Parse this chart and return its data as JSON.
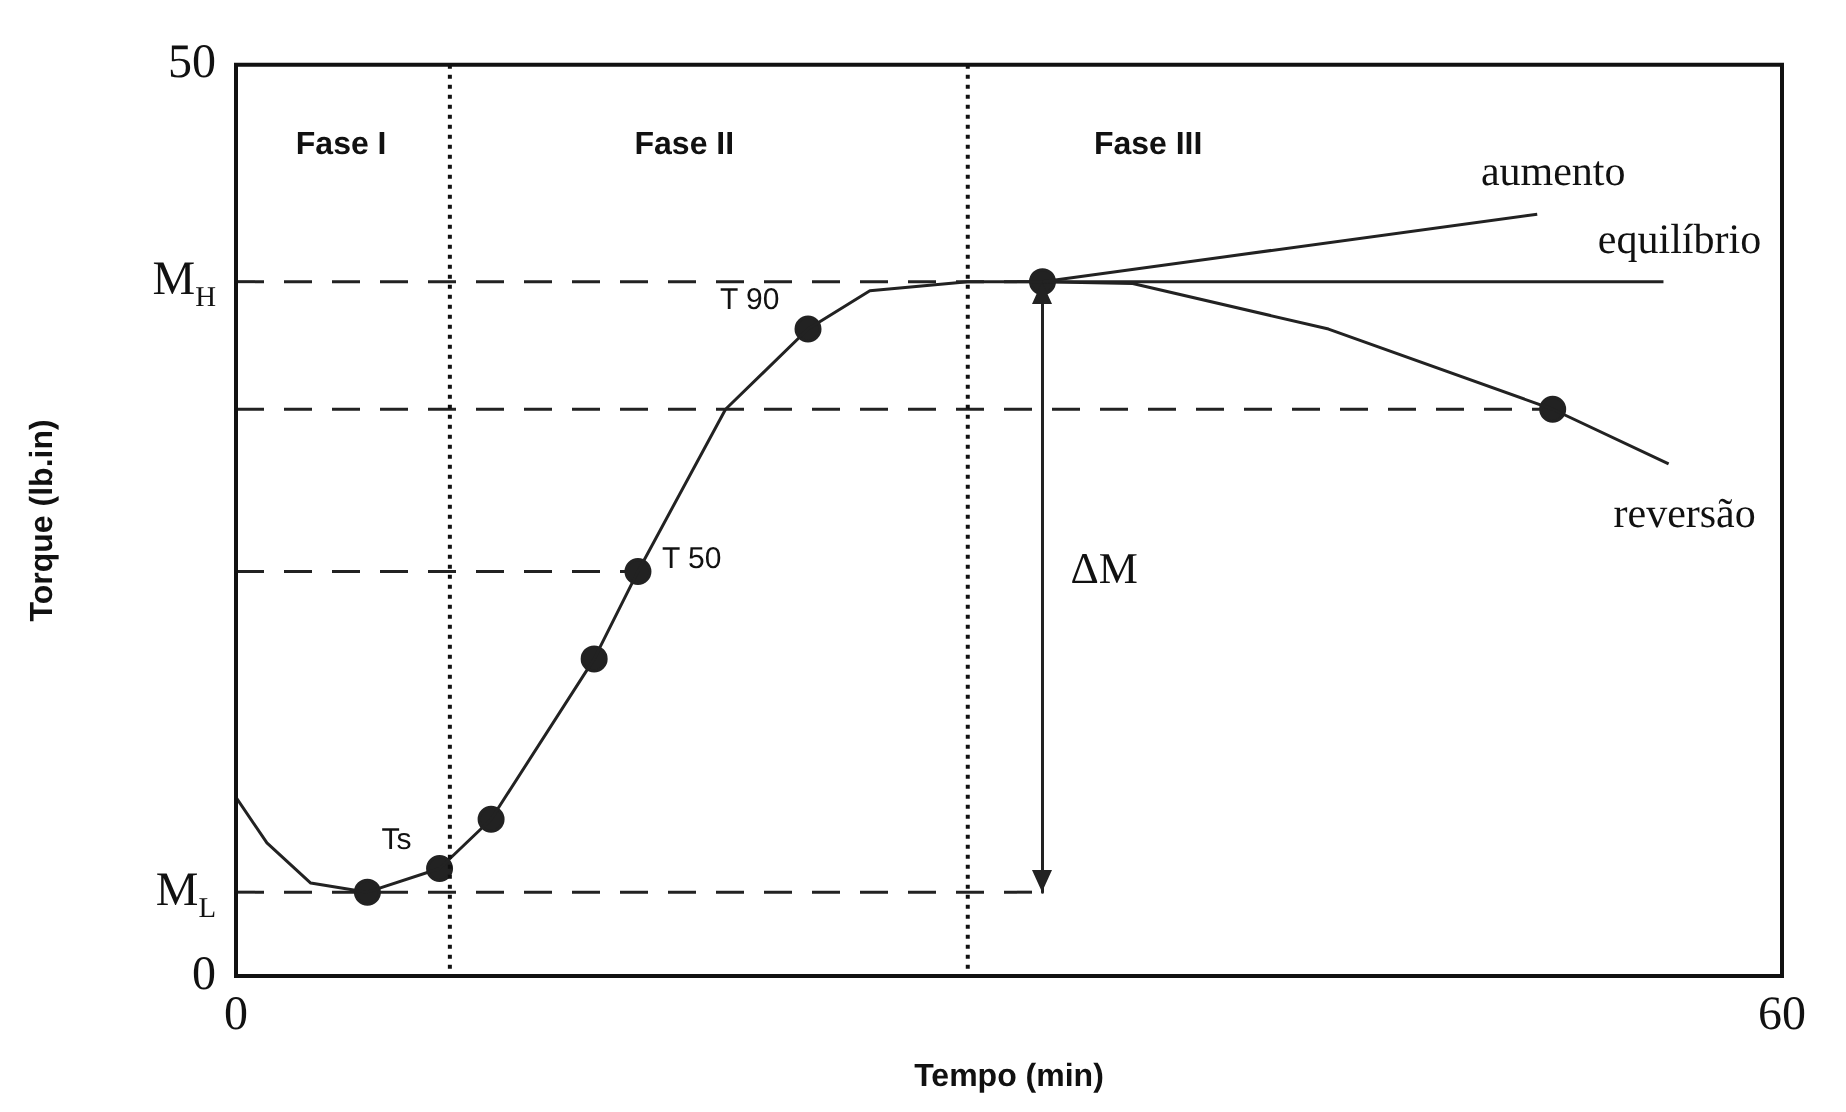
{
  "chart_data": {
    "type": "line",
    "xlabel": "Tempo (min)",
    "ylabel": "Torque (lb.in)",
    "xlim": [
      0,
      60
    ],
    "xticks": [
      0,
      60
    ],
    "ylim": [
      0,
      50
    ],
    "yticks": [
      0,
      {
        "value": 4.6,
        "label": "M$_{L}$"
      },
      {
        "value": 38.1,
        "label": "M$_{H}$"
      },
      50
    ],
    "grid": false,
    "legend": false,
    "series": [
      {
        "color": "#222222",
        "marker": "none",
        "line_style": "solid",
        "x": [
          0,
          1.2,
          2.9,
          5.1,
          7.9,
          9.9,
          13.9,
          15.6,
          19.0,
          22.2,
          24.6,
          28.4,
          31.3
        ],
        "values": [
          9.8,
          7.3,
          5.1,
          4.6,
          5.9,
          8.6,
          17.4,
          22.2,
          31.1,
          35.5,
          37.6,
          38.1,
          38.1
        ]
      },
      {
        "name": "aumento",
        "color": "#222222",
        "marker": "none",
        "line_style": "solid",
        "x": [
          31.3,
          50.5
        ],
        "values": [
          38.1,
          41.8
        ]
      },
      {
        "name": "equilíbrio",
        "color": "#222222",
        "marker": "none",
        "line_style": "solid",
        "x": [
          31.3,
          55.4
        ],
        "values": [
          38.1,
          38.1
        ]
      },
      {
        "name": "reversão",
        "color": "#222222",
        "marker": "none",
        "line_style": "solid",
        "x": [
          31.3,
          34.8,
          42.4,
          51.1,
          55.6
        ],
        "values": [
          38.1,
          38.0,
          35.5,
          31.1,
          28.1
        ]
      },
      {
        "type": "scatter",
        "color": "#222222",
        "marker": "circle",
        "x": [
          5.1,
          7.9,
          9.9,
          13.9,
          15.6,
          22.2,
          31.3,
          51.1
        ],
        "values": [
          4.6,
          5.9,
          8.6,
          17.4,
          22.2,
          35.5,
          38.1,
          31.1
        ]
      },
      {
        "type": "line",
        "color": "#222222",
        "marker": "none",
        "line_style": "dashed",
        "x": [
          0,
          31.3
        ],
        "values": [
          38.1,
          38.1
        ]
      },
      {
        "type": "line",
        "color": "#222222",
        "marker": "none",
        "line_style": "dashed",
        "x": [
          0,
          51.1
        ],
        "values": [
          31.1,
          31.1
        ]
      },
      {
        "type": "line",
        "color": "#222222",
        "marker": "none",
        "line_style": "dashed",
        "x": [
          0,
          15.6
        ],
        "values": [
          22.2,
          22.2
        ]
      },
      {
        "type": "line",
        "color": "#222222",
        "marker": "none",
        "line_style": "dashed",
        "x": [
          0,
          31.3
        ],
        "values": [
          4.6,
          4.6
        ]
      },
      {
        "type": "line",
        "color": "#222222",
        "marker": "none",
        "line_style": "solid",
        "x": [
          31.3,
          31.3
        ],
        "values": [
          38.1,
          4.6
        ]
      }
    ],
    "ref_lines": [
      {
        "axis": "x",
        "value": 8.3,
        "line_style": "dotted"
      },
      {
        "axis": "x",
        "value": 28.4,
        "line_style": "dotted"
      }
    ],
    "annotations": [
      "Fase I",
      "Fase II",
      "Fase III",
      {
        "text": "T 90",
        "x": 22.2,
        "y": 35.5
      },
      {
        "text": "T 50",
        "x": 15.6,
        "y": 22.2
      },
      {
        "text": "Ts",
        "x": 7.9,
        "y": 5.9
      },
      {
        "text": "ΔM",
        "x": 31.3,
        "y": 22.2
      }
    ]
  }
}
